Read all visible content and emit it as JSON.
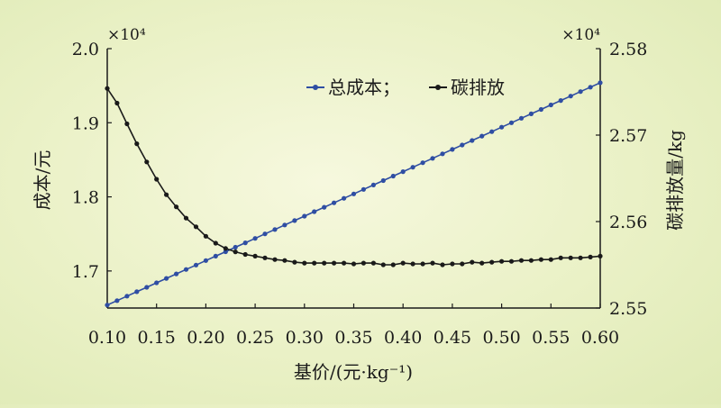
{
  "chart_data": {
    "type": "line",
    "xlabel": "基价/(元·kg⁻¹)",
    "ylabel_left": "成本/元",
    "ylabel_right": "碳排放量/kg",
    "multiplier_left": "×10⁴",
    "multiplier_right": "×10⁴",
    "xlim": [
      0.1,
      0.6
    ],
    "ylim_left": [
      1.65,
      2.0
    ],
    "ylim_right": [
      2.55,
      2.58
    ],
    "x_ticks": [
      "0.10",
      "0.15",
      "0.20",
      "0.25",
      "0.30",
      "0.35",
      "0.40",
      "0.45",
      "0.50",
      "0.55",
      "0.60"
    ],
    "y_left_ticks": [
      "1.7",
      "1.8",
      "1.9",
      "2.0"
    ],
    "y_right_ticks": [
      "2.55",
      "2.56",
      "2.57",
      "2.58"
    ],
    "legend": {
      "position": "top-center",
      "entries": [
        "总成本；",
        "碳排放"
      ]
    },
    "colors": {
      "total_cost": "#2f4ea3",
      "carbon": "#1a1a1a",
      "axis": "#1a1a1a"
    },
    "series": [
      {
        "name": "总成本；",
        "axis": "left",
        "marker": "circle",
        "x": [
          0.1,
          0.11,
          0.12,
          0.13,
          0.14,
          0.15,
          0.16,
          0.17,
          0.18,
          0.19,
          0.2,
          0.21,
          0.22,
          0.23,
          0.24,
          0.25,
          0.26,
          0.27,
          0.28,
          0.29,
          0.3,
          0.31,
          0.32,
          0.33,
          0.34,
          0.35,
          0.36,
          0.37,
          0.38,
          0.39,
          0.4,
          0.41,
          0.42,
          0.43,
          0.44,
          0.45,
          0.46,
          0.47,
          0.48,
          0.49,
          0.5,
          0.51,
          0.52,
          0.53,
          0.54,
          0.55,
          0.56,
          0.57,
          0.58,
          0.59,
          0.6
        ],
        "values": [
          1.654,
          1.66,
          1.666,
          1.672,
          1.678,
          1.684,
          1.69,
          1.696,
          1.702,
          1.708,
          1.714,
          1.72,
          1.726,
          1.732,
          1.738,
          1.744,
          1.75,
          1.756,
          1.762,
          1.768,
          1.774,
          1.78,
          1.786,
          1.792,
          1.798,
          1.804,
          1.81,
          1.816,
          1.822,
          1.828,
          1.834,
          1.84,
          1.846,
          1.852,
          1.858,
          1.864,
          1.87,
          1.876,
          1.882,
          1.888,
          1.894,
          1.9,
          1.906,
          1.912,
          1.918,
          1.924,
          1.93,
          1.936,
          1.942,
          1.948,
          1.954
        ]
      },
      {
        "name": "碳排放",
        "axis": "right",
        "marker": "circle",
        "x": [
          0.1,
          0.11,
          0.12,
          0.13,
          0.14,
          0.15,
          0.16,
          0.17,
          0.18,
          0.19,
          0.2,
          0.21,
          0.22,
          0.23,
          0.24,
          0.25,
          0.26,
          0.27,
          0.28,
          0.29,
          0.3,
          0.31,
          0.32,
          0.33,
          0.34,
          0.35,
          0.36,
          0.37,
          0.38,
          0.39,
          0.4,
          0.41,
          0.42,
          0.43,
          0.44,
          0.45,
          0.46,
          0.47,
          0.48,
          0.49,
          0.5,
          0.51,
          0.52,
          0.53,
          0.54,
          0.55,
          0.56,
          0.57,
          0.58,
          0.59,
          0.6
        ],
        "values": [
          2.5754,
          2.5737,
          2.5713,
          2.569,
          2.5669,
          2.5649,
          2.5631,
          2.5617,
          2.5604,
          2.5594,
          2.5583,
          2.5575,
          2.5569,
          2.5565,
          2.5562,
          2.556,
          2.5558,
          2.5556,
          2.5555,
          2.5553,
          2.5552,
          2.5552,
          2.5552,
          2.5552,
          2.5552,
          2.5551,
          2.5552,
          2.5552,
          2.555,
          2.555,
          2.5552,
          2.5551,
          2.5551,
          2.5552,
          2.555,
          2.5551,
          2.5551,
          2.5553,
          2.5552,
          2.5553,
          2.5554,
          2.5554,
          2.5555,
          2.5555,
          2.5556,
          2.5556,
          2.5558,
          2.5558,
          2.5558,
          2.5559,
          2.556
        ]
      }
    ]
  }
}
